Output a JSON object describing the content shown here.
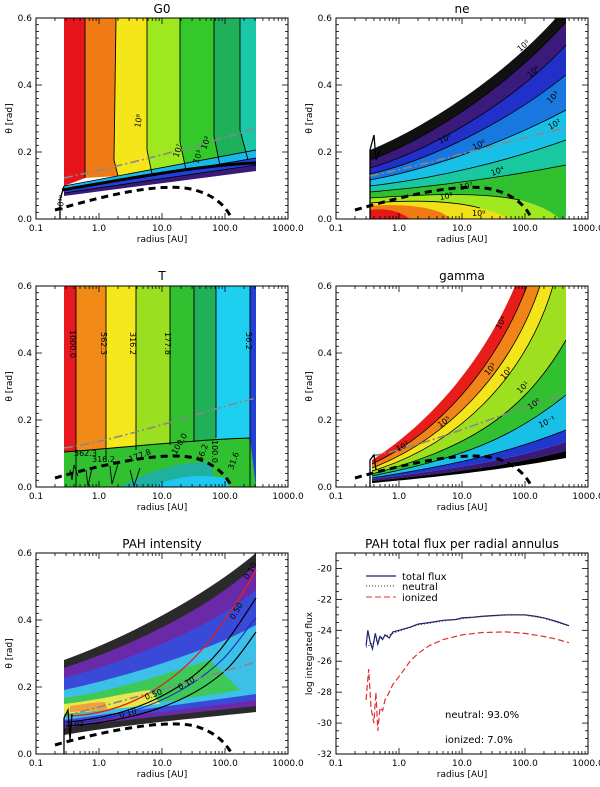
{
  "panels": [
    {
      "title": "G0",
      "xlabel": "radius [AU]",
      "ylabel": "θ [rad]",
      "contour_labels": [
        "10⁸",
        "10⁷",
        "10³",
        "10²",
        "10¹⁰"
      ]
    },
    {
      "title": "ne",
      "xlabel": "radius [AU]",
      "ylabel": "θ [rad]",
      "contour_labels": [
        "10⁵",
        "10⁴",
        "10³",
        "10²",
        "10⁵",
        "10⁶",
        "10⁸",
        "10⁷",
        "10⁹",
        "10⁴"
      ]
    },
    {
      "title": "T",
      "xlabel": "radius [AU]",
      "ylabel": "θ [rad]",
      "contour_labels": [
        "1000.0",
        "562.3",
        "316.2",
        "177.8",
        "100.0",
        "56.2",
        "562.3",
        "316.2",
        "177.8",
        "100.0",
        "56.2",
        "31.6"
      ]
    },
    {
      "title": "gamma",
      "xlabel": "radius [AU]",
      "ylabel": "θ [rad]",
      "contour_labels": [
        "10⁴",
        "10³",
        "10²",
        "10¹",
        "10⁰",
        "10⁻¹",
        "10⁵",
        "10²"
      ]
    },
    {
      "title": "PAH intensity",
      "xlabel": "radius [AU]",
      "ylabel": "θ [rad]",
      "contour_labels": [
        "0.50",
        "0.10",
        "0.50",
        "0.10",
        "0.10",
        "0.02"
      ]
    }
  ],
  "x_ticks": [
    "0.1",
    "1.0",
    "10.0",
    "100.0",
    "1000.0"
  ],
  "x_tick_values": [
    0.1,
    1,
    10,
    100,
    1000
  ],
  "y_ticks": [
    "0.0",
    "0.2",
    "0.4",
    "0.6"
  ],
  "flux_panel": {
    "title": "PAH total flux per radial annulus",
    "xlabel": "radius [AU]",
    "ylabel": "log integrated flux",
    "y_ticks": [
      "-32",
      "-30",
      "-28",
      "-26",
      "-24",
      "-22",
      "-20"
    ],
    "legend": [
      "total flux",
      "neutral",
      "ionized"
    ],
    "note_neutral": "neutral: 93.0%",
    "note_ionized": "ionized: 7.0%"
  },
  "chart_data": {
    "type": "line",
    "title": "PAH total flux per radial annulus",
    "xlabel": "radius [AU]",
    "ylabel": "log integrated flux",
    "xscale": "log",
    "xlim": [
      0.1,
      1000
    ],
    "ylim": [
      -32,
      -19
    ],
    "series": [
      {
        "name": "total flux",
        "color": "#1b1f7a",
        "x": [
          0.3,
          0.32,
          0.35,
          0.38,
          0.42,
          0.46,
          0.5,
          0.55,
          0.6,
          0.7,
          0.8,
          1.0,
          1.5,
          2,
          3,
          5,
          8,
          10,
          15,
          20,
          30,
          50,
          80,
          100,
          150,
          200,
          300,
          500
        ],
        "y": [
          -25.0,
          -24.0,
          -24.8,
          -25.2,
          -24.2,
          -24.9,
          -24.4,
          -24.6,
          -24.3,
          -24.5,
          -24.1,
          -24.0,
          -23.8,
          -23.6,
          -23.5,
          -23.35,
          -23.3,
          -23.2,
          -23.15,
          -23.1,
          -23.05,
          -23.0,
          -23.0,
          -23.0,
          -23.1,
          -23.2,
          -23.4,
          -23.7
        ]
      },
      {
        "name": "neutral",
        "color": "#333333",
        "dash": "dotted",
        "x": [
          0.3,
          0.5,
          1,
          2,
          5,
          10,
          20,
          50,
          100,
          200,
          500
        ],
        "y": [
          -25.1,
          -24.5,
          -24.05,
          -23.65,
          -23.4,
          -23.25,
          -23.12,
          -23.02,
          -23.02,
          -23.22,
          -23.72
        ]
      },
      {
        "name": "ionized",
        "color": "#e03030",
        "dash": "dashed",
        "x": [
          0.3,
          0.33,
          0.36,
          0.4,
          0.43,
          0.46,
          0.5,
          0.55,
          0.6,
          0.7,
          0.8,
          1.0,
          1.5,
          2,
          3,
          5,
          10,
          20,
          50,
          100,
          200,
          300,
          500
        ],
        "y": [
          -28.5,
          -26.5,
          -29.0,
          -30.0,
          -28.0,
          -30.5,
          -29.0,
          -29.2,
          -28.5,
          -28.0,
          -27.5,
          -27.0,
          -26.0,
          -25.5,
          -25.0,
          -24.6,
          -24.3,
          -24.15,
          -24.1,
          -24.2,
          -24.4,
          -24.55,
          -24.8
        ]
      }
    ]
  }
}
